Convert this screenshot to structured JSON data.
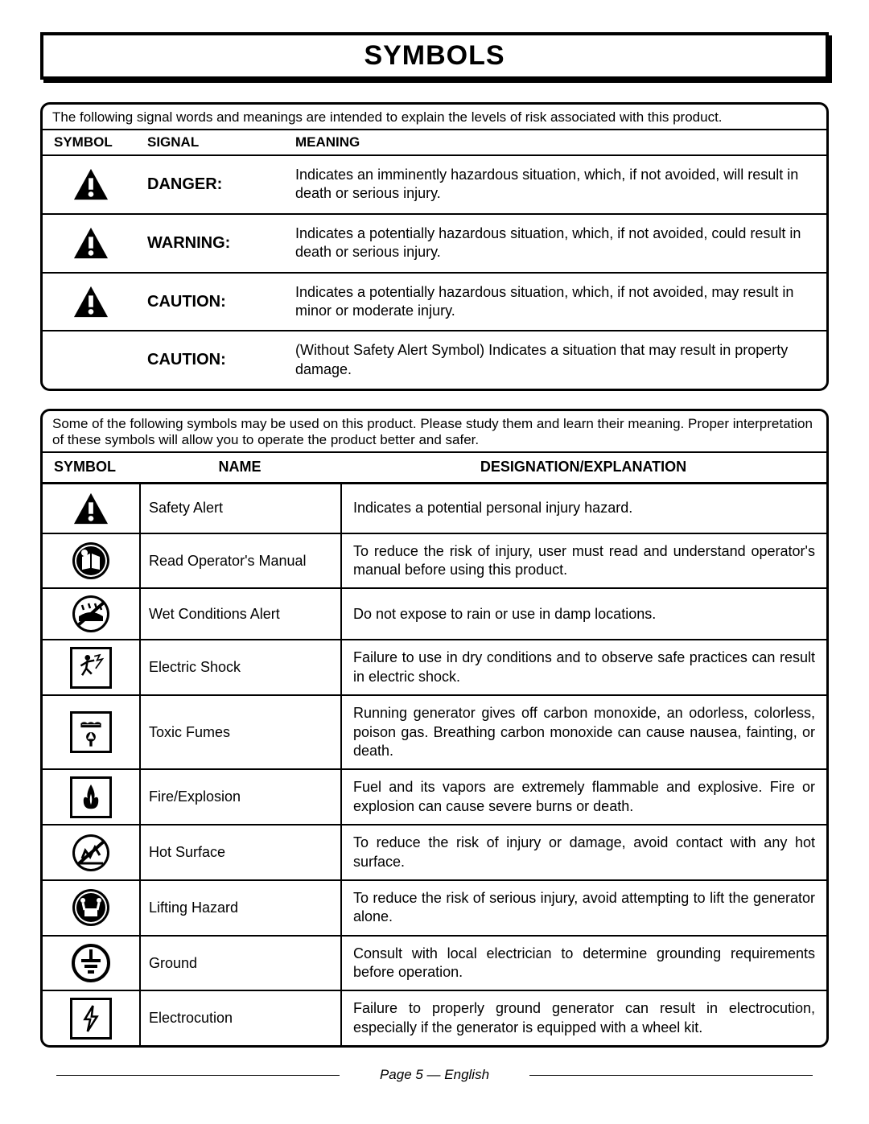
{
  "page_title": "SYMBOLS",
  "signal_table": {
    "intro": "The following signal words and meanings are intended to explain the levels of risk associated with this product.",
    "headers": {
      "symbol": "SYMBOL",
      "signal": "SIGNAL",
      "meaning": "MEANING"
    },
    "rows": [
      {
        "has_icon": true,
        "signal": "DANGER:",
        "meaning": "Indicates an imminently hazardous situation, which, if not avoided, will result in death or serious injury."
      },
      {
        "has_icon": true,
        "signal": "WARNING:",
        "meaning": "Indicates a potentially hazardous situation, which, if not avoided, could result in death or serious injury."
      },
      {
        "has_icon": true,
        "signal": "CAUTION:",
        "meaning": "Indicates a potentially hazardous situation, which, if not avoided, may result in minor or moderate injury."
      },
      {
        "has_icon": false,
        "signal": "CAUTION:",
        "meaning": "(Without Safety Alert Symbol) Indicates a situation that may result in property damage."
      }
    ]
  },
  "symbol_table": {
    "intro": "Some of the following symbols may be used on this product. Please study them and learn their meaning. Proper interpretation of these symbols will allow you to operate the product better and safer.",
    "headers": {
      "symbol": "SYMBOL",
      "name": "NAME",
      "designation": "DESIGNATION/EXPLANATION"
    },
    "rows": [
      {
        "icon": "alert",
        "name": "Safety Alert",
        "desc": "Indicates a potential personal injury hazard."
      },
      {
        "icon": "manual",
        "name": "Read Operator's Manual",
        "desc": "To reduce the risk of injury, user must read and understand operator's manual before using this product."
      },
      {
        "icon": "wet",
        "name": "Wet Conditions Alert",
        "desc": "Do not expose to rain or use in damp locations."
      },
      {
        "icon": "shock",
        "name": "Electric Shock",
        "desc": "Failure to use in dry conditions and to observe safe practices can result in electric shock."
      },
      {
        "icon": "fumes",
        "name": "Toxic Fumes",
        "desc": "Running generator gives off carbon monoxide, an odorless, colorless, poison gas. Breathing carbon monoxide can cause nausea, fainting, or death."
      },
      {
        "icon": "fire",
        "name": "Fire/Explosion",
        "desc": "Fuel and its vapors are extremely flammable and explosive. Fire or explosion can cause severe burns or death."
      },
      {
        "icon": "hot",
        "name": "Hot Surface",
        "desc": "To reduce the risk of injury or damage, avoid contact with any hot surface."
      },
      {
        "icon": "lift",
        "name": "Lifting Hazard",
        "desc": "To reduce the risk of serious injury, avoid attempting to lift the generator alone."
      },
      {
        "icon": "ground",
        "name": "Ground",
        "desc": "Consult with local electrician to determine grounding requirements before operation."
      },
      {
        "icon": "electrocution",
        "name": "Electrocution",
        "desc": "Failure to properly ground generator can result in electrocution, especially if the generator is equipped with a wheel kit."
      }
    ]
  },
  "footer": "Page 5  —  English"
}
